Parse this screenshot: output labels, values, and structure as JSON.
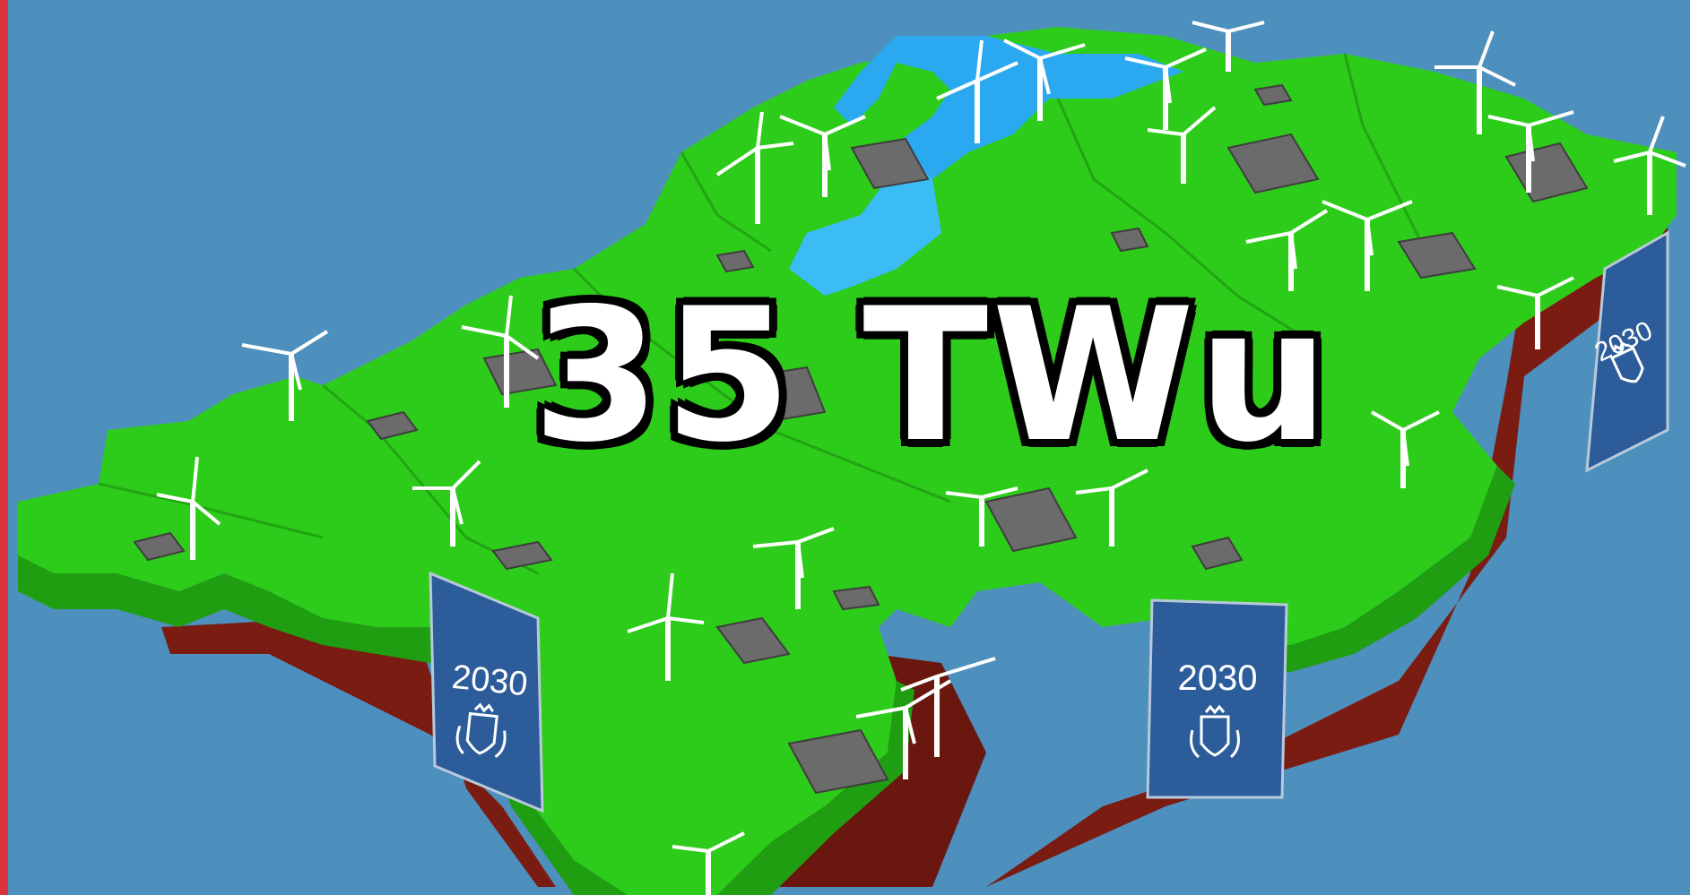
{
  "headline": "35 TWu",
  "banners": [
    {
      "year": "2030"
    },
    {
      "year": "2030"
    },
    {
      "year": "2030"
    }
  ],
  "colors": {
    "sky": "#4d8fbd",
    "land": "#2ecc1a",
    "land_dark": "#1f9e12",
    "soil": "#7a1c12",
    "water": "#2aa8f0",
    "banner": "#2c5d9a",
    "edge_bar": "#d9323c"
  }
}
